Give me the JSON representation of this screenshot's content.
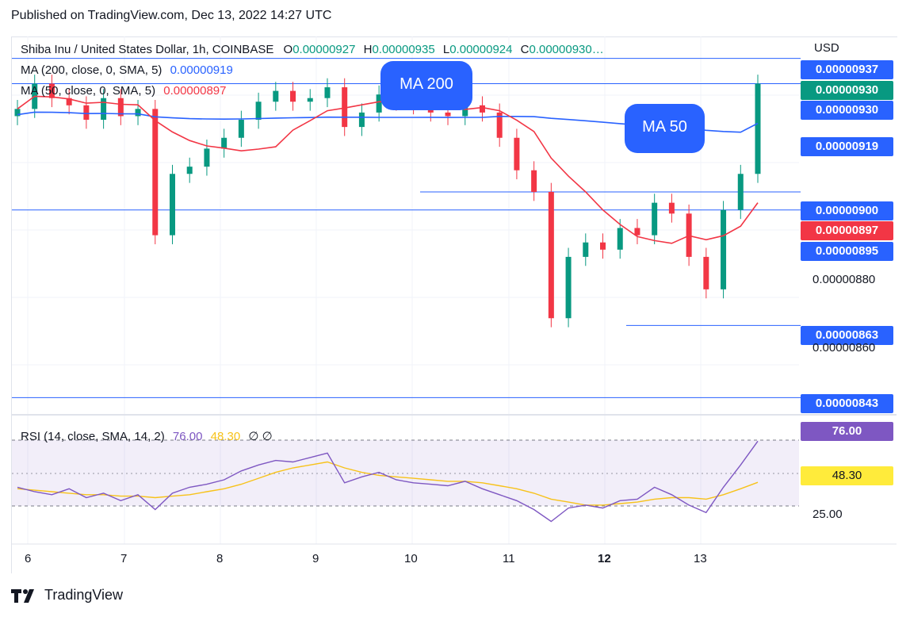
{
  "header": {
    "published": "Published on TradingView.com, Dec 13, 2022 14:27 UTC"
  },
  "legend": {
    "symbol": "Shiba Inu / United States Dollar, 1h, COINBASE",
    "o_label": "O",
    "o_value": "0.00000927",
    "h_label": "H",
    "h_value": "0.00000935",
    "l_label": "L",
    "l_value": "0.00000924",
    "c_label": "C",
    "c_value": "0.00000930…",
    "ma200_label": "MA (200, close, 0, SMA, 5)",
    "ma200_value": "0.00000919",
    "ma50_label": "MA (50, close, 0, SMA, 5)",
    "ma50_value": "0.00000897",
    "rsi_label": "RSI (14, close, SMA, 14, 2)",
    "rsi_value": "76.00",
    "rsi_ma_value": "48.30",
    "rsi_extra": "∅  ∅"
  },
  "callouts": {
    "ma200": "MA 200",
    "ma50": "MA 50"
  },
  "price_axis": {
    "currency": "USD",
    "badges": [
      {
        "text": "0.00000937",
        "color": "#2962ff"
      },
      {
        "text": "0.00000930",
        "color": "#089981"
      },
      {
        "text": "0.00000930",
        "color": "#2962ff"
      },
      {
        "text": "0.00000919",
        "color": "#2962ff"
      },
      {
        "text": "0.00000900",
        "color": "#2962ff"
      },
      {
        "text": "0.00000897",
        "color": "#f23645"
      },
      {
        "text": "0.00000895",
        "color": "#2962ff"
      },
      {
        "text": "0.00000863",
        "color": "#2962ff"
      },
      {
        "text": "0.00000843",
        "color": "#2962ff"
      }
    ],
    "ticks": [
      "0.00000880",
      "0.00000860"
    ]
  },
  "rsi_axis": {
    "badges": [
      {
        "text": "76.00",
        "color": "#7e57c2"
      },
      {
        "text": "48.30",
        "color": "#ffeb3b"
      }
    ],
    "ticks": [
      "25.00"
    ]
  },
  "time_axis": [
    "6",
    "7",
    "8",
    "9",
    "10",
    "11",
    "12",
    "13"
  ],
  "footer": {
    "brand": "TradingView"
  },
  "chart_data": {
    "type": "line",
    "title": "Shiba Inu / United States Dollar, 1h, COINBASE",
    "x_dates": [
      "Dec 6",
      "Dec 7",
      "Dec 8",
      "Dec 9",
      "Dec 10",
      "Dec 11",
      "Dec 12",
      "Dec 13"
    ],
    "ylim": [
      8.4e-06,
      9.4e-06
    ],
    "price_close": [
      9.23e-06,
      9.3e-06,
      9.26e-06,
      9.24e-06,
      9.2e-06,
      9.26e-06,
      9.21e-06,
      9.23e-06,
      8.88e-06,
      9.05e-06,
      9.07e-06,
      9.12e-06,
      9.15e-06,
      9.2e-06,
      9.25e-06,
      9.28e-06,
      9.25e-06,
      9.26e-06,
      9.29e-06,
      9.18e-06,
      9.22e-06,
      9.27e-06,
      9.25e-06,
      9.24e-06,
      9.22e-06,
      9.21e-06,
      9.24e-06,
      9.22e-06,
      9.15e-06,
      9.06e-06,
      9e-06,
      8.65e-06,
      8.82e-06,
      8.86e-06,
      8.84e-06,
      8.9e-06,
      8.88e-06,
      8.97e-06,
      8.94e-06,
      8.82e-06,
      8.73e-06,
      8.95e-06,
      9.05e-06,
      9.3e-06
    ],
    "series": [
      {
        "name": "MA (200, close, 0, SMA, 5)",
        "color": "#2962ff",
        "last": 9.19e-06
      },
      {
        "name": "MA (50, close, 0, SMA, 5)",
        "color": "#f23645",
        "last": 8.97e-06
      }
    ],
    "horizontal_levels": [
      9.37e-06,
      9.3e-06,
      9e-06,
      8.95e-06,
      8.63e-06,
      8.43e-06
    ],
    "rsi": {
      "ylim": [
        10,
        90
      ],
      "bands": [
        30,
        70
      ],
      "rsi_values": [
        45,
        42,
        40,
        44,
        38,
        41,
        36,
        40,
        30,
        41,
        45,
        47,
        50,
        56,
        60,
        63,
        62,
        65,
        68,
        48,
        52,
        55,
        50,
        48,
        47,
        46,
        49,
        44,
        40,
        36,
        30,
        22,
        31,
        33,
        31,
        36,
        37,
        45,
        40,
        33,
        28,
        45,
        60,
        76
      ],
      "ma_values": [
        44,
        43,
        42,
        41,
        40,
        40,
        39,
        39,
        38,
        39,
        40,
        42,
        44,
        47,
        51,
        55,
        58,
        60,
        62,
        58,
        55,
        53,
        52,
        51,
        50,
        49,
        49,
        48,
        46,
        44,
        41,
        37,
        35,
        33,
        33,
        34,
        35,
        37,
        38,
        38,
        37,
        40,
        44,
        48.3
      ]
    }
  }
}
